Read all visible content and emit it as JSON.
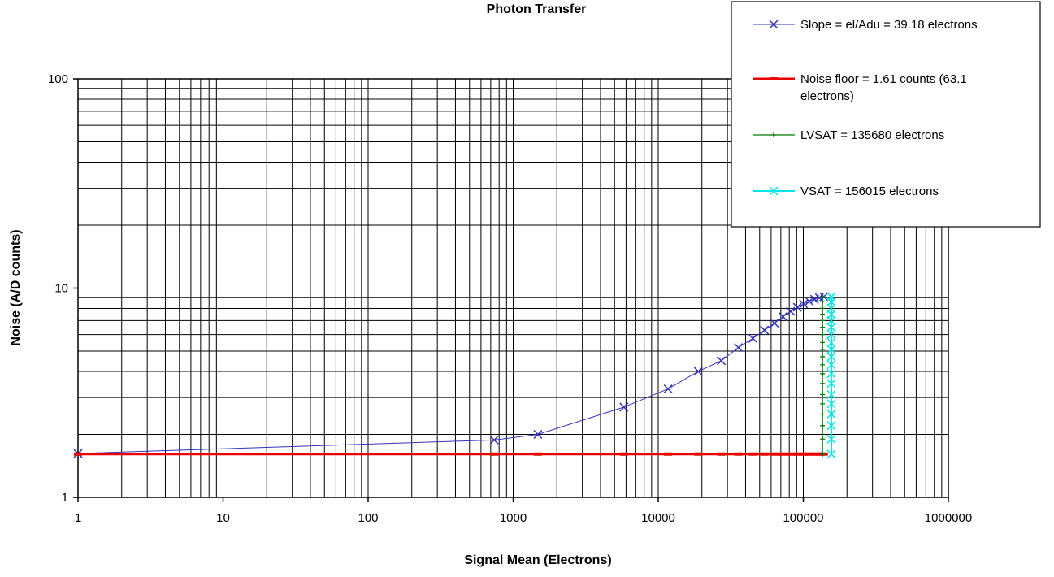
{
  "chart_data": {
    "type": "scatter",
    "title": "Photon Transfer",
    "xlabel": "Signal Mean (Electrons)",
    "ylabel": "Noise (A/D counts)",
    "xscale": "log",
    "yscale": "log",
    "xlim": [
      1,
      1000000
    ],
    "ylim": [
      1,
      100
    ],
    "grid": true,
    "legend_position": "top-right",
    "x_tick_labels": [
      "1",
      "10",
      "100",
      "1000",
      "10000",
      "100000",
      "1000000"
    ],
    "y_tick_labels": [
      "1",
      "10",
      "100"
    ],
    "series": [
      {
        "name": "Slope = el/Adu = 39.18 electrons",
        "color": "#3333bb",
        "marker": "x",
        "x": [
          1,
          740,
          1480,
          5800,
          11700,
          18900,
          27200,
          35700,
          44900,
          54000,
          63300,
          72500,
          81800,
          91000,
          100500,
          110000,
          119500,
          129000,
          138500
        ],
        "y": [
          1.62,
          1.88,
          2.0,
          2.7,
          3.3,
          4.0,
          4.5,
          5.2,
          5.75,
          6.3,
          6.8,
          7.3,
          7.75,
          8.1,
          8.4,
          8.65,
          8.85,
          9.0,
          9.1
        ]
      },
      {
        "name": "Noise floor = 1.61 counts (63.1 electrons)",
        "color": "#ee0000",
        "marker": "dash",
        "x": [
          1,
          740,
          1480,
          5800,
          11700,
          18900,
          27200,
          35700,
          44900,
          54000,
          63300,
          72500,
          81800,
          91000,
          100500,
          110000,
          119500,
          129000,
          138500
        ],
        "y": [
          1.61,
          1.61,
          1.61,
          1.61,
          1.61,
          1.61,
          1.61,
          1.61,
          1.61,
          1.61,
          1.61,
          1.61,
          1.61,
          1.61,
          1.61,
          1.61,
          1.61,
          1.61,
          1.61
        ]
      },
      {
        "name": "LVSAT = 135680 electrons",
        "color": "#007a00",
        "marker": "plus",
        "x": [
          135680,
          135680,
          135680,
          135680,
          135680,
          135680,
          135680,
          135680,
          135680,
          135680,
          135680,
          135680,
          135680,
          135680,
          135680,
          135680,
          135680,
          135680,
          135680
        ],
        "y": [
          1.61,
          1.9,
          2.2,
          2.5,
          2.8,
          3.1,
          3.5,
          3.9,
          4.3,
          4.7,
          5.1,
          5.5,
          6.0,
          6.5,
          7.0,
          7.5,
          8.0,
          8.6,
          9.1
        ]
      },
      {
        "name": "VSAT = 156015 electrons",
        "color": "#00e5e5",
        "marker": "x",
        "x": [
          156015,
          156015,
          156015,
          156015,
          156015,
          156015,
          156015,
          156015,
          156015,
          156015,
          156015,
          156015,
          156015,
          156015,
          156015,
          156015,
          156015,
          156015,
          156015
        ],
        "y": [
          1.61,
          1.9,
          2.2,
          2.5,
          2.8,
          3.1,
          3.5,
          3.9,
          4.3,
          4.7,
          5.1,
          5.5,
          6.0,
          6.5,
          7.0,
          7.5,
          8.0,
          8.6,
          9.1
        ]
      }
    ]
  }
}
